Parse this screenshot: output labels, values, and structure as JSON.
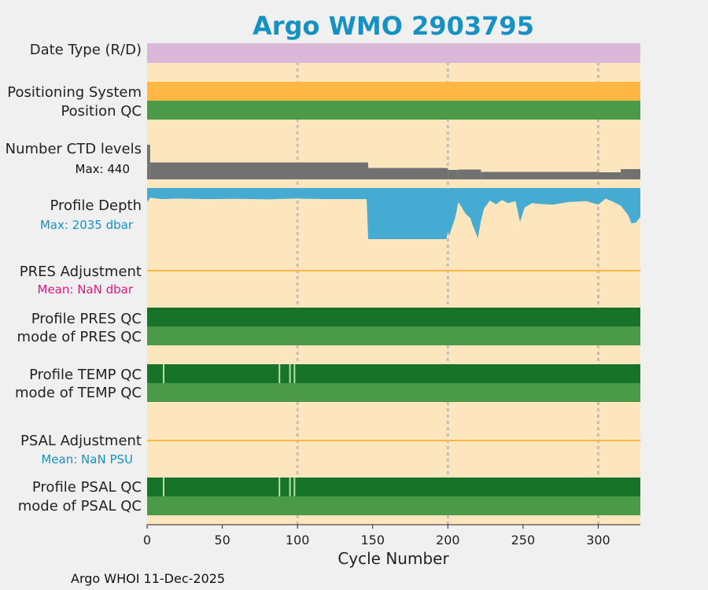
{
  "chart_data": {
    "type": "timeline",
    "title": "Argo WMO 2903795",
    "xlabel": "Cycle Number",
    "xlim": [
      0,
      328
    ],
    "xticks": [
      0,
      50,
      100,
      150,
      200,
      250,
      300
    ],
    "grid_x": [
      100,
      200,
      300
    ],
    "footer": "Argo WHOI 11-Dec-2025",
    "rows": {
      "date_type": {
        "label": "Date Type (R/D)",
        "color": "#dbb8da"
      },
      "positioning_system": {
        "label": "Positioning System",
        "color": "#ffb642"
      },
      "position_qc": {
        "label": "Position QC",
        "color": "#4a9a48"
      },
      "ctd_levels": {
        "label": "Number CTD levels",
        "max_label": "Max: 440",
        "max": 440,
        "color": "#717171",
        "segments": [
          {
            "from": 0,
            "to": 2,
            "value": 440
          },
          {
            "from": 2,
            "to": 147,
            "value": 215
          },
          {
            "from": 147,
            "to": 200,
            "value": 145
          },
          {
            "from": 200,
            "to": 207,
            "value": 120
          },
          {
            "from": 207,
            "to": 222,
            "value": 125
          },
          {
            "from": 222,
            "to": 300,
            "value": 95
          },
          {
            "from": 300,
            "to": 315,
            "value": 90
          },
          {
            "from": 315,
            "to": 328,
            "value": 130
          }
        ]
      },
      "profile_depth": {
        "label": "Profile Depth",
        "max_label": "Max: 2035 dbar",
        "max": 2035,
        "color": "#45abd2",
        "depth": [
          [
            0,
            560
          ],
          [
            2,
            390
          ],
          [
            3,
            390
          ],
          [
            10,
            440
          ],
          [
            20,
            420
          ],
          [
            40,
            440
          ],
          [
            60,
            430
          ],
          [
            80,
            450
          ],
          [
            100,
            420
          ],
          [
            120,
            440
          ],
          [
            146,
            440
          ],
          [
            147,
            2035
          ],
          [
            180,
            2035
          ],
          [
            199,
            2035
          ],
          [
            200,
            1720
          ],
          [
            201,
            1880
          ],
          [
            205,
            1150
          ],
          [
            207,
            560
          ],
          [
            212,
            1040
          ],
          [
            215,
            1200
          ],
          [
            216,
            1400
          ],
          [
            220,
            2000
          ],
          [
            222,
            1300
          ],
          [
            224,
            820
          ],
          [
            228,
            500
          ],
          [
            232,
            650
          ],
          [
            236,
            480
          ],
          [
            240,
            600
          ],
          [
            245,
            520
          ],
          [
            248,
            1350
          ],
          [
            251,
            780
          ],
          [
            256,
            600
          ],
          [
            262,
            640
          ],
          [
            270,
            660
          ],
          [
            280,
            560
          ],
          [
            292,
            520
          ],
          [
            300,
            660
          ],
          [
            305,
            420
          ],
          [
            310,
            550
          ],
          [
            315,
            700
          ],
          [
            320,
            1080
          ],
          [
            322,
            1400
          ],
          [
            325,
            1380
          ],
          [
            328,
            1150
          ]
        ]
      },
      "pres_adjustment": {
        "label": "PRES Adjustment",
        "mean_label": "Mean:  NaN dbar",
        "mean_color": "#e0197a",
        "line_color": "#ffb642"
      },
      "profile_pres_qc": {
        "label": "Profile PRES QC",
        "color": "#177329"
      },
      "mode_pres_qc": {
        "label": "mode of PRES QC",
        "color": "#4a9a48"
      },
      "profile_temp_qc": {
        "label": "Profile TEMP QC",
        "color": "#177329",
        "marks": [
          11,
          88,
          95,
          98
        ]
      },
      "mode_temp_qc": {
        "label": "mode of TEMP QC",
        "color": "#4a9a48"
      },
      "psal_adjustment": {
        "label": "PSAL Adjustment",
        "mean_label": "Mean:  NaN PSU",
        "mean_color": "#1691c2",
        "line_color": "#ffb642"
      },
      "profile_psal_qc": {
        "label": "Profile PSAL QC",
        "color": "#177329",
        "marks": [
          11,
          88,
          95,
          98
        ]
      },
      "mode_psal_qc": {
        "label": "mode of PSAL QC",
        "color": "#4a9a48"
      }
    },
    "colors": {
      "background": "#fde6bd",
      "title": "#1691c2",
      "max_ctd_label": "#111111",
      "max_depth_label": "#1691c2",
      "grid": "#c0c0c0"
    }
  }
}
